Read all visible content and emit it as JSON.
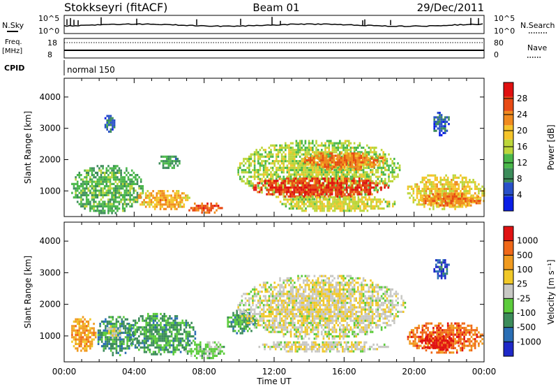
{
  "header": {
    "station": "Stokkseyri (fitACF)",
    "beam": "Beam 01",
    "date": "29/Dec/2011"
  },
  "top_panels": {
    "nsky_label": "N.Sky",
    "nsearch_label": "N.Search",
    "nsky_ticks": [
      "10^5",
      "10^0"
    ],
    "nsearch_ticks": [
      "10^5",
      "10^0"
    ],
    "freq_label": "Freq.",
    "freq_unit": "[MHz]",
    "freq_ticks": [
      "18",
      "8"
    ],
    "nave_label": "Nave",
    "nave_ticks": [
      "80",
      "0"
    ],
    "cpid_label": "CPID",
    "cpid_value": "normal 150"
  },
  "colors": {
    "power": [
      "#0a1ee6",
      "#2850c8",
      "#3c8c5a",
      "#4ab84a",
      "#bcd63a",
      "#f5c42a",
      "#f08a1e",
      "#e84a14",
      "#e01010"
    ],
    "velocity": [
      "#1e28c8",
      "#2a6eb4",
      "#3c8c5a",
      "#5ccc3c",
      "#c8c8c4",
      "#f0c828",
      "#f09a1e",
      "#f06818",
      "#e01212"
    ]
  },
  "chart_data": [
    {
      "type": "heatmap",
      "name": "power",
      "ylabel": "Slant Range [km]",
      "y_ticks": [
        1000,
        2000,
        3000,
        4000
      ],
      "ylim": [
        180,
        4600
      ],
      "xlim_hours": [
        0,
        24
      ],
      "colorbar_label": "Power [dB]",
      "colorbar_ticks": [
        4,
        8,
        12,
        16,
        20,
        24,
        28
      ],
      "colorbar_range": [
        0,
        32
      ],
      "regions": [
        {
          "t0": 0.3,
          "t1": 4.5,
          "r0": 300,
          "r1": 1900,
          "level": 0.35
        },
        {
          "t0": 4.0,
          "t1": 7.2,
          "r0": 400,
          "r1": 1100,
          "level": 0.62
        },
        {
          "t0": 7.0,
          "t1": 9.0,
          "r0": 300,
          "r1": 700,
          "level": 0.78
        },
        {
          "t0": 2.2,
          "t1": 2.9,
          "r0": 2900,
          "r1": 3500,
          "level": 0.2
        },
        {
          "t0": 5.3,
          "t1": 6.6,
          "r0": 1700,
          "r1": 2200,
          "level": 0.3
        },
        {
          "t0": 9.8,
          "t1": 19.2,
          "r0": 700,
          "r1": 2700,
          "level": 0.45
        },
        {
          "t0": 10.6,
          "t1": 18.5,
          "r0": 800,
          "r1": 1500,
          "level": 0.85
        },
        {
          "t0": 13.5,
          "t1": 18.3,
          "r0": 1700,
          "r1": 2300,
          "level": 0.72
        },
        {
          "t0": 12.0,
          "t1": 19.0,
          "r0": 350,
          "r1": 900,
          "level": 0.5
        },
        {
          "t0": 19.5,
          "t1": 24.0,
          "r0": 400,
          "r1": 1600,
          "level": 0.55
        },
        {
          "t0": 20.3,
          "t1": 24.0,
          "r0": 500,
          "r1": 1000,
          "level": 0.72
        },
        {
          "t0": 21.0,
          "t1": 22.0,
          "r0": 2800,
          "r1": 3600,
          "level": 0.15
        }
      ]
    },
    {
      "type": "heatmap",
      "name": "velocity",
      "ylabel": "Slant Range [km]",
      "y_ticks": [
        1000,
        2000,
        3000,
        4000
      ],
      "ylim": [
        180,
        4600
      ],
      "xlabel": "Time UT",
      "x_ticks": [
        "00:00",
        "04:00",
        "08:00",
        "12:00",
        "16:00",
        "20:00",
        "00:00"
      ],
      "xlim_hours": [
        0,
        24
      ],
      "colorbar_label": "Velocity [m s⁻¹]",
      "colorbar_ticks": [
        "1000",
        "500",
        "100",
        "25",
        "-25",
        "-100",
        "-500",
        "-1000"
      ],
      "regions": [
        {
          "t0": 0.3,
          "t1": 1.8,
          "r0": 500,
          "r1": 1700,
          "level": 0.68
        },
        {
          "t0": 1.8,
          "t1": 4.0,
          "r0": 400,
          "r1": 1700,
          "level": 0.25
        },
        {
          "t0": 2.3,
          "t1": 3.2,
          "r0": 900,
          "r1": 1400,
          "level": 0.5
        },
        {
          "t0": 3.5,
          "t1": 7.5,
          "r0": 400,
          "r1": 1800,
          "level": 0.28
        },
        {
          "t0": 6.8,
          "t1": 9.2,
          "r0": 300,
          "r1": 900,
          "level": 0.38
        },
        {
          "t0": 9.2,
          "t1": 11.0,
          "r0": 1100,
          "r1": 1900,
          "level": 0.28
        },
        {
          "t0": 9.8,
          "t1": 19.5,
          "r0": 900,
          "r1": 3000,
          "level": 0.5
        },
        {
          "t0": 11.0,
          "t1": 18.5,
          "r0": 500,
          "r1": 900,
          "level": 0.5
        },
        {
          "t0": 19.5,
          "t1": 24.0,
          "r0": 450,
          "r1": 1500,
          "level": 0.8
        },
        {
          "t0": 20.3,
          "t1": 22.5,
          "r0": 550,
          "r1": 1100,
          "level": 0.92
        },
        {
          "t0": 21.0,
          "t1": 22.0,
          "r0": 2800,
          "r1": 3500,
          "level": 0.1
        }
      ]
    }
  ]
}
